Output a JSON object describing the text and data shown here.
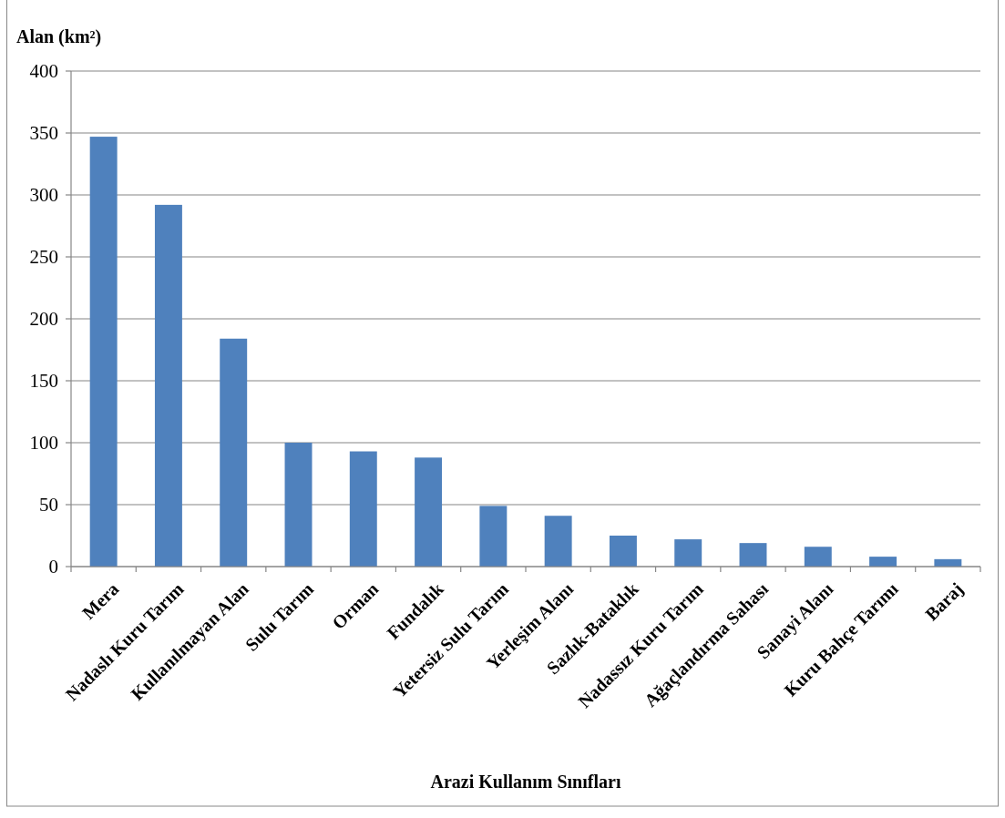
{
  "chart_data": {
    "type": "bar",
    "ylabel": "Alan (km²)",
    "xlabel": "Arazi Kullanım Sınıfları",
    "categories": [
      "Mera",
      "Nadaslı Kuru Tarım",
      "Kullanılmayan Alan",
      "Sulu Tarım",
      "Orman",
      "Fundalık",
      "Yetersiz Sulu Tarım",
      "Yerleşim Alanı",
      "Sazlık-Bataklık",
      "Nadassız Kuru Tarım",
      "Ağaçlandırma Sahası",
      "Sanayi Alanı",
      "Kuru Bahçe Tarımı",
      "Baraj"
    ],
    "values": [
      347,
      292,
      184,
      100,
      93,
      88,
      49,
      41,
      25,
      22,
      19,
      16,
      8,
      6
    ],
    "color": "#4f81bd",
    "ylim": [
      0,
      400
    ],
    "yticks": [
      0,
      50,
      100,
      150,
      200,
      250,
      300,
      350,
      400
    ],
    "grid": "y"
  }
}
